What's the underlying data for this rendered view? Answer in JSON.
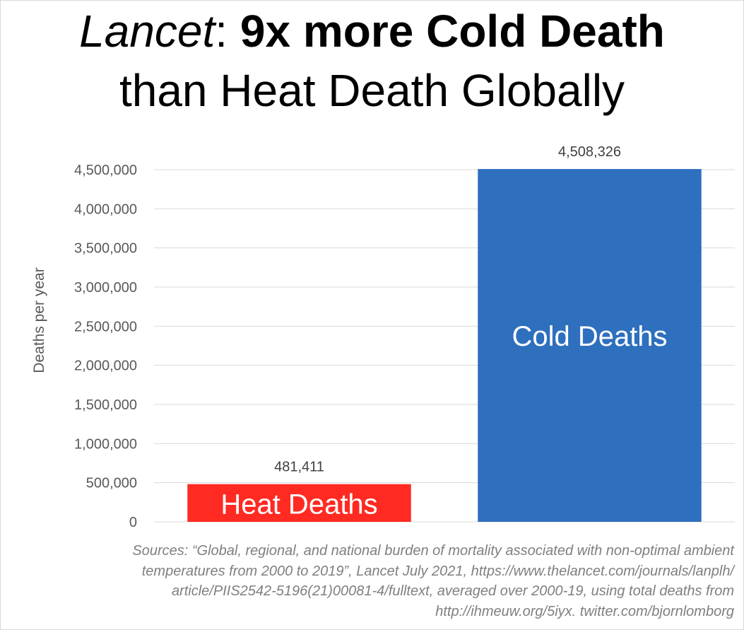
{
  "title": {
    "line1_italic": "Lancet",
    "line1_colon": ": ",
    "line1_bold": "9x more Cold Death",
    "line2": "than Heat Death Globally"
  },
  "colors": {
    "heat": "#ff2a22",
    "cold": "#2e6fbe",
    "grid": "#d9d9d9",
    "axis_text": "#595959"
  },
  "chart_data": {
    "type": "bar",
    "categories": [
      "Heat Deaths",
      "Cold Deaths"
    ],
    "values": [
      481411,
      4508326
    ],
    "data_labels": [
      "481,411",
      "4,508,326"
    ],
    "bar_colors": [
      "#ff2a22",
      "#2e6fbe"
    ],
    "ylabel": "Deaths per year",
    "ylim": [
      0,
      4500000
    ],
    "yticks": [
      0,
      500000,
      1000000,
      1500000,
      2000000,
      2500000,
      3000000,
      3500000,
      4000000,
      4500000
    ],
    "ytick_labels": [
      "0",
      "500,000",
      "1,000,000",
      "1,500,000",
      "2,000,000",
      "2,500,000",
      "3,000,000",
      "3,500,000",
      "4,000,000",
      "4,500,000"
    ],
    "grid": true,
    "legend": "none"
  },
  "sources": {
    "line1": "Sources: “Global, regional, and national burden of mortality associated with non-optimal ambient",
    "line2": "temperatures from 2000 to 2019”, Lancet July 2021, https://www.thelancet.com/journals/lanplh/",
    "line3": "article/PIIS2542-5196(21)00081-4/fulltext, averaged over 2000-19, using total deaths from",
    "line4": "http://ihmeuw.org/5iyx. twitter.com/bjornlomborg"
  }
}
